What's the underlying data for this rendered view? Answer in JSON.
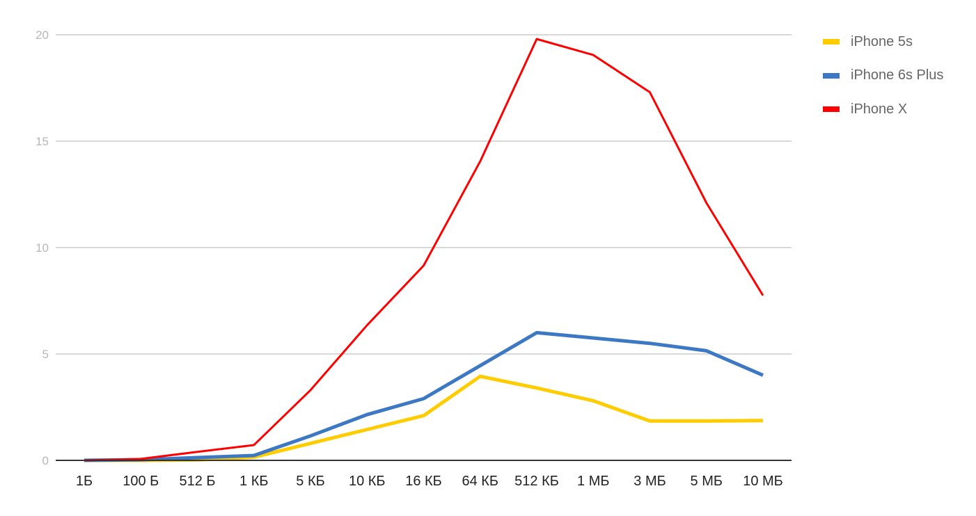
{
  "chart_data": {
    "type": "line",
    "title": "",
    "xlabel": "",
    "ylabel": "",
    "ylim": [
      0,
      20
    ],
    "yticks": [
      0,
      5,
      10,
      15,
      20
    ],
    "grid": true,
    "legend_position": "right",
    "categories": [
      "1Б",
      "100 Б",
      "512 Б",
      "1 КБ",
      "5 КБ",
      "10 КБ",
      "16 КБ",
      "64 КБ",
      "512 КБ",
      "1 МБ",
      "3 МБ",
      "5 МБ",
      "10 МБ"
    ],
    "series": [
      {
        "name": "iPhone 5s",
        "color": "#ffcc00",
        "width": 5,
        "values": [
          0,
          0,
          0.02,
          0.15,
          0.8,
          1.45,
          2.1,
          3.95,
          3.4,
          2.8,
          1.85,
          1.85,
          1.87
        ]
      },
      {
        "name": "iPhone 6s Plus",
        "color": "#3c78c3",
        "width": 5,
        "values": [
          0,
          0.03,
          0.13,
          0.23,
          1.15,
          2.15,
          2.9,
          4.45,
          6.0,
          5.75,
          5.5,
          5.15,
          4.0
        ]
      },
      {
        "name": "iPhone X",
        "color": "#ff0000",
        "width": 3,
        "values": [
          0,
          0.07,
          0.4,
          0.72,
          3.3,
          6.35,
          9.15,
          14.05,
          19.8,
          19.05,
          17.3,
          12.1,
          7.75
        ]
      }
    ]
  },
  "legend": {
    "items": [
      {
        "label": "iPhone 5s",
        "color": "#ffcc00"
      },
      {
        "label": "iPhone 6s Plus",
        "color": "#3c78c3"
      },
      {
        "label": "iPhone X",
        "color": "#ff0000"
      }
    ]
  }
}
